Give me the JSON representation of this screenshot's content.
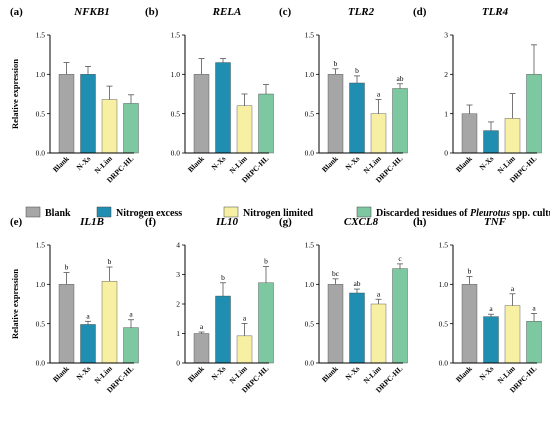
{
  "colors": {
    "Blank": "#a6a6a6",
    "N-Xs": "#1f8eb0",
    "N-Lim": "#f7f0a3",
    "DRPC-HL": "#7dc8a0"
  },
  "legend": {
    "items": [
      {
        "key": "Blank",
        "label": "Blank"
      },
      {
        "key": "N-Xs",
        "label": "Nitrogen excess"
      },
      {
        "key": "N-Lim",
        "label": "Nitrogen limited"
      }
    ],
    "last_item": {
      "key": "DRPC-HL",
      "prefix": "Discarded residues of ",
      "italic": "Pleurotus",
      "suffix": " spp. cultures hydrolysate"
    }
  },
  "chart_data": [
    {
      "letter": "(a)",
      "title": "NFKB1",
      "type": "bar",
      "ylabel": "Relative expression",
      "ylim": [
        0,
        1.5
      ],
      "yticks": [
        "0.0",
        "0.5",
        "1.0",
        "1.5"
      ],
      "categories": [
        "Blank",
        "N-Xs",
        "N-Lim",
        "DRPC-HL"
      ],
      "values": [
        1.0,
        1.0,
        0.68,
        0.63
      ],
      "errors": [
        0.15,
        0.1,
        0.17,
        0.11
      ],
      "labels": [
        "",
        "",
        "",
        ""
      ]
    },
    {
      "letter": "(b)",
      "title": "RELA",
      "type": "bar",
      "ylabel": "",
      "ylim": [
        0,
        1.5
      ],
      "yticks": [
        "0.0",
        "0.5",
        "1.0",
        "1.5"
      ],
      "categories": [
        "Blank",
        "N-Xs",
        "N-Lim",
        "DRPC-HL"
      ],
      "values": [
        1.0,
        1.15,
        0.6,
        0.75
      ],
      "errors": [
        0.2,
        0.05,
        0.15,
        0.12
      ],
      "labels": [
        "",
        "",
        "",
        ""
      ]
    },
    {
      "letter": "(c)",
      "title": "TLR2",
      "type": "bar",
      "ylabel": "",
      "ylim": [
        0,
        1.5
      ],
      "yticks": [
        "0.0",
        "0.5",
        "1.0",
        "1.5"
      ],
      "categories": [
        "Blank",
        "N-Xs",
        "N-Lim",
        "DRPC-HL"
      ],
      "values": [
        1.0,
        0.89,
        0.5,
        0.82
      ],
      "errors": [
        0.07,
        0.09,
        0.18,
        0.06
      ],
      "labels": [
        "b",
        "b",
        "a",
        "ab"
      ]
    },
    {
      "letter": "(d)",
      "title": "TLR4",
      "type": "bar",
      "ylabel": "",
      "ylim": [
        0,
        3
      ],
      "yticks": [
        "0",
        "1",
        "2",
        "3"
      ],
      "categories": [
        "Blank",
        "N-Xs",
        "N-Lim",
        "DRPC-HL"
      ],
      "values": [
        1.0,
        0.57,
        0.88,
        2.0
      ],
      "errors": [
        0.22,
        0.22,
        0.63,
        0.75
      ],
      "labels": [
        "",
        "",
        "",
        ""
      ]
    },
    {
      "letter": "(e)",
      "title": "IL1B",
      "type": "bar",
      "ylabel": "Relative expression",
      "ylim": [
        0,
        1.5
      ],
      "yticks": [
        "0.0",
        "0.5",
        "1.0",
        "1.5"
      ],
      "categories": [
        "Blank",
        "N-Xs",
        "N-Lim",
        "DRPC-HL"
      ],
      "values": [
        1.0,
        0.49,
        1.04,
        0.45
      ],
      "errors": [
        0.15,
        0.04,
        0.18,
        0.1
      ],
      "labels": [
        "b",
        "a",
        "b",
        "a"
      ]
    },
    {
      "letter": "(f)",
      "title": "IL10",
      "type": "bar",
      "ylabel": "",
      "ylim": [
        0,
        4
      ],
      "yticks": [
        "0",
        "1",
        "2",
        "3",
        "4"
      ],
      "categories": [
        "Blank",
        "N-Xs",
        "N-Lim",
        "DRPC-HL"
      ],
      "values": [
        1.0,
        2.27,
        0.92,
        2.72
      ],
      "errors": [
        0.05,
        0.45,
        0.42,
        0.55
      ],
      "labels": [
        "a",
        "b",
        "a",
        "b"
      ]
    },
    {
      "letter": "(g)",
      "title": "CXCL8",
      "type": "bar",
      "ylabel": "",
      "ylim": [
        0,
        1.5
      ],
      "yticks": [
        "0.0",
        "0.5",
        "1.0",
        "1.5"
      ],
      "categories": [
        "Blank",
        "N-Xs",
        "N-Lim",
        "DRPC-HL"
      ],
      "values": [
        1.0,
        0.89,
        0.75,
        1.2
      ],
      "errors": [
        0.07,
        0.05,
        0.06,
        0.06
      ],
      "labels": [
        "bc",
        "ab",
        "a",
        "c"
      ]
    },
    {
      "letter": "(h)",
      "title": "TNF",
      "type": "bar",
      "ylabel": "",
      "ylim": [
        0,
        1.5
      ],
      "yticks": [
        "0.0",
        "0.5",
        "1.0",
        "1.5"
      ],
      "categories": [
        "Blank",
        "N-Xs",
        "N-Lim",
        "DRPC-HL"
      ],
      "values": [
        1.0,
        0.59,
        0.73,
        0.53
      ],
      "errors": [
        0.1,
        0.03,
        0.15,
        0.1
      ],
      "labels": [
        "b",
        "a",
        "a",
        "a"
      ]
    }
  ]
}
